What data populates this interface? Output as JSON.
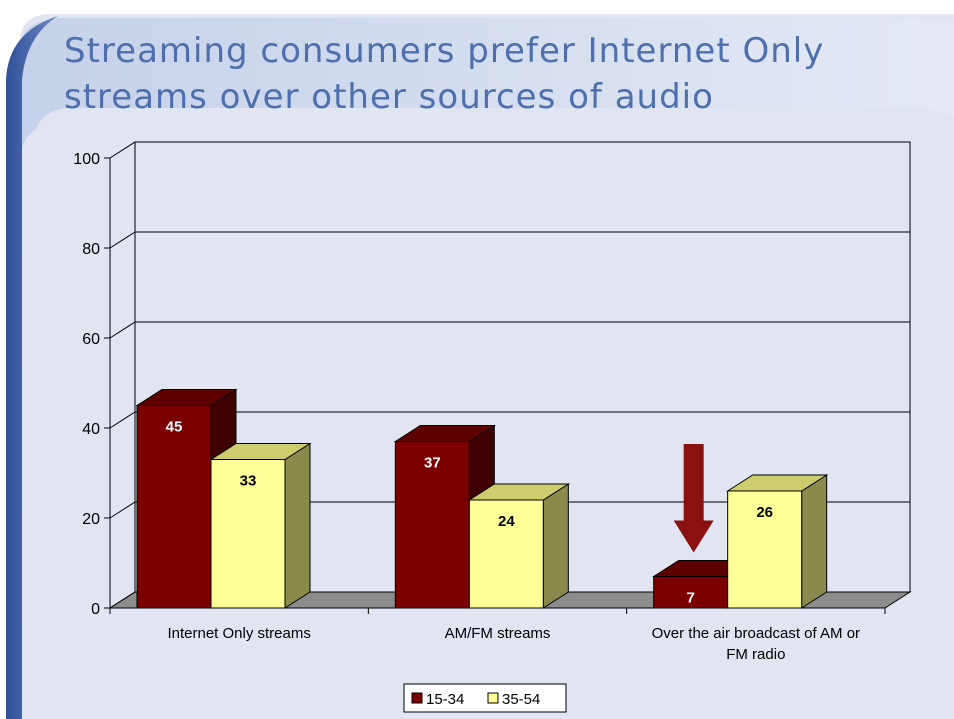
{
  "slide": {
    "title": "Streaming consumers prefer Internet Only streams over other sources of audio"
  },
  "colors": {
    "title": "#4d6fae",
    "band_left": "#3d5fa5",
    "band_top": "#c5d1ea",
    "background": "#e1e5f2",
    "series_15_34": "#7b0000",
    "series_35_54": "#ffff99",
    "arrow": "#8b1010"
  },
  "chart_data": {
    "type": "bar",
    "style": "3d-clustered",
    "categories": [
      "Internet Only streams",
      "AM/FM streams",
      "Over the air broadcast of AM or FM radio"
    ],
    "series": [
      {
        "name": "15-34",
        "values": [
          45,
          37,
          7
        ]
      },
      {
        "name": "35-54",
        "values": [
          33,
          24,
          26
        ]
      }
    ],
    "title": "",
    "xlabel": "",
    "ylabel": "",
    "ylim": [
      0,
      100
    ],
    "yticks": [
      0,
      20,
      40,
      60,
      80,
      100
    ],
    "grid": true,
    "data_labels": true,
    "legend": "bottom-center",
    "annotation": {
      "type": "down-arrow",
      "category_index": 2,
      "series_index": 0
    }
  }
}
